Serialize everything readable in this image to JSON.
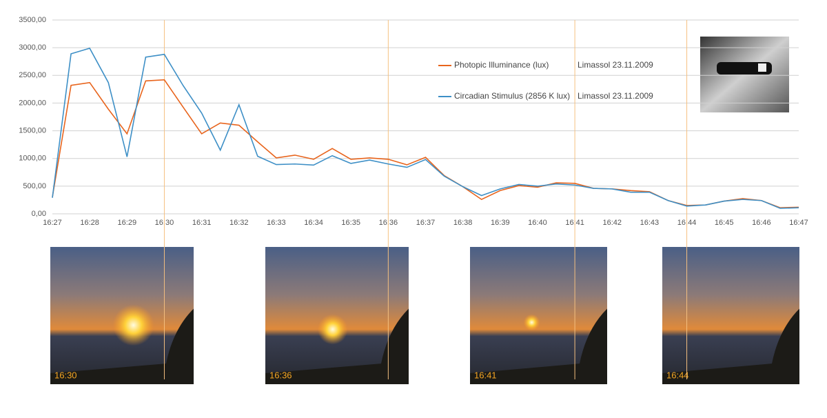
{
  "chart_data": {
    "type": "line",
    "categories": [
      "16:27",
      null,
      "16:28",
      null,
      "16:29",
      null,
      "16:30",
      null,
      "16:31",
      null,
      "16:32",
      null,
      "16:33",
      null,
      "16:34",
      null,
      "16:35",
      null,
      "16:36",
      null,
      "16:37",
      null,
      "16:38",
      null,
      "16:39",
      null,
      "16:40",
      null,
      "16:41",
      null,
      "16:42",
      null,
      "16:43",
      null,
      "16:44",
      null,
      "16:45",
      null,
      "16:46",
      null,
      "16:47"
    ],
    "series": [
      {
        "name": "Photopic Illuminance (lux)",
        "note": "Limassol 23.11.2009",
        "color": "#e8641c",
        "values": [
          300,
          2320,
          2370,
          1890,
          1445,
          2400,
          2420,
          1930,
          1445,
          1640,
          1600,
          1300,
          1010,
          1060,
          985,
          1180,
          985,
          1010,
          985,
          885,
          1020,
          690,
          490,
          260,
          420,
          510,
          480,
          560,
          550,
          460,
          450,
          420,
          400,
          240,
          150,
          160,
          230,
          275,
          240,
          110,
          120
        ]
      },
      {
        "name": "Circadian Stimulus (2856 K lux)",
        "note": "Limassol 23.11.2009",
        "color": "#3d8fc6",
        "values": [
          290,
          2890,
          2990,
          2370,
          1030,
          2830,
          2880,
          2320,
          1820,
          1150,
          1970,
          1040,
          890,
          900,
          880,
          1050,
          910,
          970,
          900,
          840,
          980,
          680,
          490,
          330,
          450,
          530,
          500,
          540,
          520,
          460,
          450,
          390,
          390,
          240,
          140,
          160,
          230,
          260,
          240,
          100,
          110
        ]
      }
    ],
    "ylim": [
      0,
      3500
    ],
    "yticks": [
      {
        "value": 0,
        "label": "0,00"
      },
      {
        "value": 500,
        "label": "500,00"
      },
      {
        "value": 1000,
        "label": "1000,00"
      },
      {
        "value": 1500,
        "label": "1500,00"
      },
      {
        "value": 2000,
        "label": "2000,00"
      },
      {
        "value": 2500,
        "label": "2500,00"
      },
      {
        "value": 3000,
        "label": "3000,00"
      },
      {
        "value": 3500,
        "label": "3500,00"
      }
    ],
    "grid": true,
    "photos": [
      "16:30",
      "16:36",
      "16:41",
      "16:44"
    ]
  }
}
